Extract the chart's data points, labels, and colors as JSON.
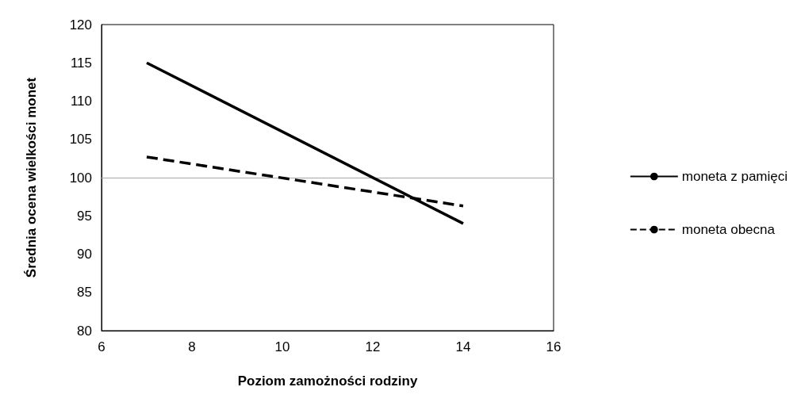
{
  "chart_data": {
    "type": "line",
    "xlabel": "Poziom zamożności rodziny",
    "ylabel": "Średnia ocena wielkości monet",
    "x": [
      7,
      14
    ],
    "series": [
      {
        "name": "moneta z pamięci",
        "color": "#000000",
        "values": [
          115,
          94
        ],
        "line_style": "solid"
      },
      {
        "name": "moneta obecna",
        "color": "#000000",
        "values": [
          102.7,
          96.3
        ],
        "line_style": "dashed"
      }
    ],
    "xlim": [
      6,
      16
    ],
    "xticks": [
      6,
      8,
      10,
      12,
      14,
      16
    ],
    "ylim": [
      80,
      120
    ],
    "yticks": [
      80,
      85,
      90,
      95,
      100,
      105,
      110,
      115,
      120
    ],
    "ref_lines": [
      {
        "axis": "y",
        "value": 100,
        "label": null,
        "color": "#a6a6a6",
        "line_style": "solid"
      }
    ],
    "grid": false,
    "legend": "right",
    "marker": "none"
  }
}
